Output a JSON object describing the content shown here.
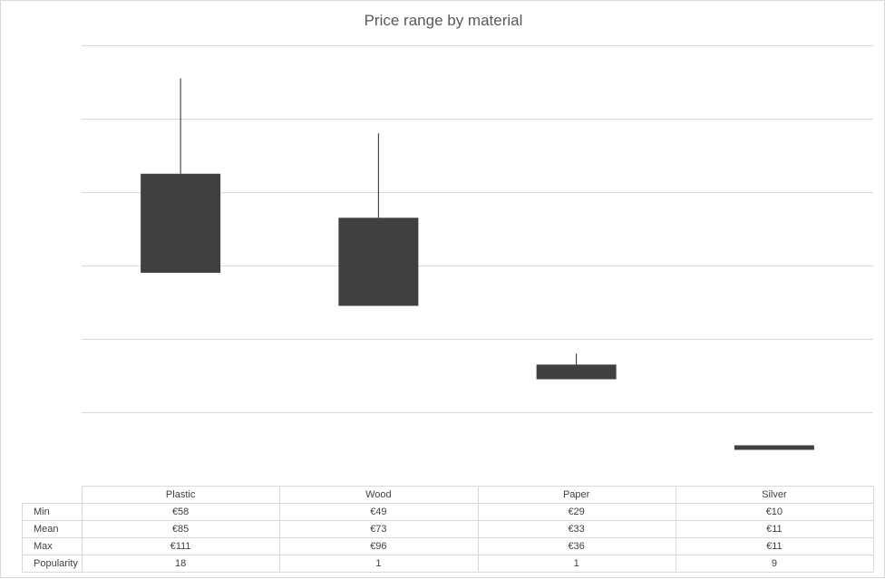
{
  "chart_data": {
    "type": "bar",
    "title": "Price range by material",
    "categories": [
      "Plastic",
      "Wood",
      "Paper",
      "Silver"
    ],
    "series": [
      {
        "name": "Min",
        "values": [
          58,
          49,
          29,
          10
        ]
      },
      {
        "name": "Mean",
        "values": [
          85,
          73,
          33,
          11
        ]
      },
      {
        "name": "Max",
        "values": [
          111,
          96,
          36,
          11
        ]
      },
      {
        "name": "Popularity",
        "values": [
          18,
          1,
          1,
          9
        ]
      }
    ],
    "table": {
      "row_labels": [
        "Min",
        "Mean",
        "Max",
        "Popularity"
      ],
      "rows": [
        [
          "€58",
          "€49",
          "€29",
          "€10"
        ],
        [
          "€85",
          "€73",
          "€33",
          "€11"
        ],
        [
          "€111",
          "€96",
          "€36",
          "€11"
        ],
        [
          "18",
          "1",
          "1",
          "9"
        ]
      ]
    },
    "ylim": [
      0,
      120
    ],
    "grid": true,
    "colors": {
      "bar": "#404040",
      "grid": "#d9d9d9",
      "text": "#404040",
      "title": "#595959"
    }
  }
}
